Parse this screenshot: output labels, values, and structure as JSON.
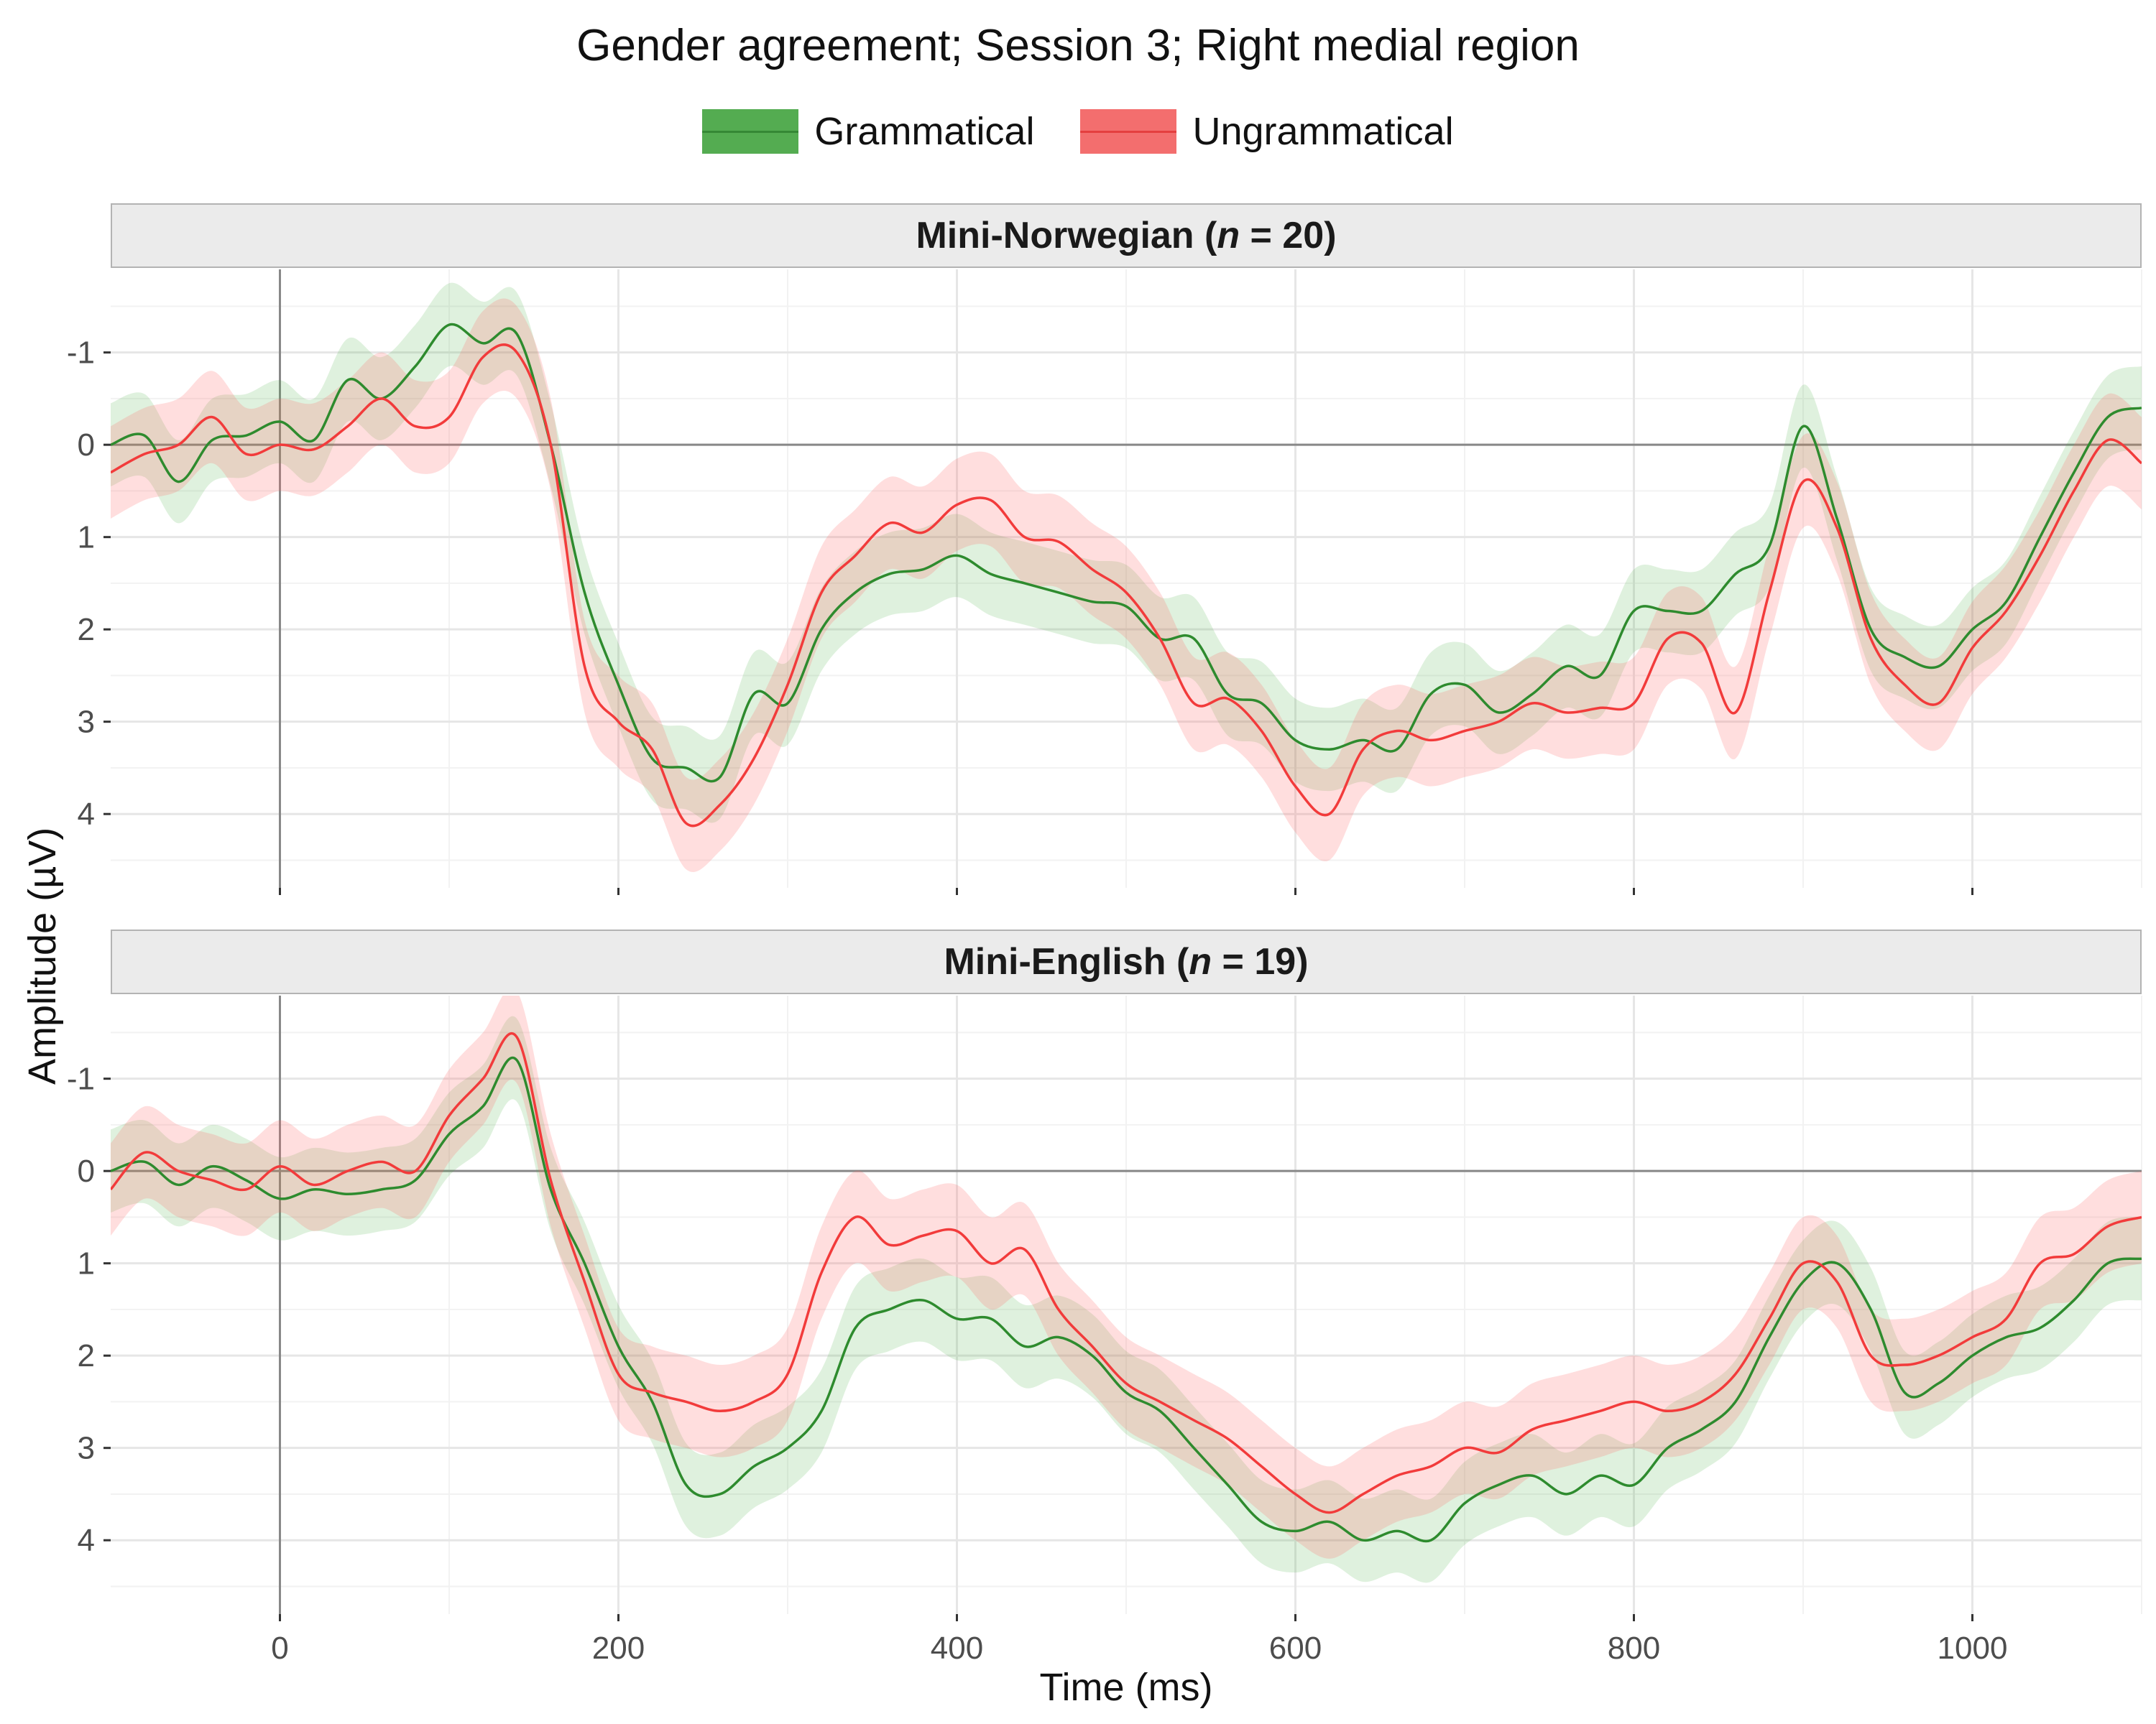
{
  "chart_data": {
    "type": "line",
    "title": "Gender agreement; Session 3; Right medial region",
    "xlabel": "Time (ms)",
    "ylabel": "Amplitude (µV)",
    "y_reversed": true,
    "xlim": [
      -100,
      1100
    ],
    "ylim": [
      -1.9,
      4.8
    ],
    "x_ticks": [
      0,
      200,
      400,
      600,
      800,
      1000
    ],
    "y_ticks": [
      -1,
      0,
      1,
      2,
      3,
      4
    ],
    "x_tick_labels": [
      "0",
      "200",
      "400",
      "600",
      "800",
      "1000"
    ],
    "y_tick_labels": [
      "-1",
      "0",
      "1",
      "2",
      "3",
      "4"
    ],
    "grid": true,
    "legend_position": "top",
    "legend": [
      {
        "name": "Grammatical",
        "color": "#2e8b2e",
        "fill": "#4daf4a"
      },
      {
        "name": "Ungrammatical",
        "color": "#f23b3b",
        "fill": "#ff6b6b"
      }
    ],
    "panels": [
      {
        "label_prefix": "Mini-Norwegian (",
        "label_n": "n",
        "label_suffix": " = 20)",
        "x": [
          -100,
          -80,
          -60,
          -40,
          -20,
          0,
          20,
          40,
          60,
          80,
          100,
          120,
          140,
          160,
          180,
          200,
          220,
          240,
          260,
          280,
          300,
          320,
          340,
          360,
          380,
          400,
          420,
          440,
          460,
          480,
          500,
          520,
          540,
          560,
          580,
          600,
          620,
          640,
          660,
          680,
          700,
          720,
          740,
          760,
          780,
          800,
          820,
          840,
          860,
          880,
          900,
          920,
          940,
          960,
          980,
          1000,
          1020,
          1040,
          1060,
          1080,
          1100
        ],
        "series": [
          {
            "name": "Grammatical",
            "values": [
              0.0,
              -0.1,
              0.4,
              -0.05,
              -0.1,
              -0.25,
              -0.05,
              -0.7,
              -0.5,
              -0.85,
              -1.3,
              -1.1,
              -1.2,
              0.0,
              1.6,
              2.6,
              3.4,
              3.5,
              3.6,
              2.7,
              2.8,
              2.0,
              1.6,
              1.4,
              1.35,
              1.2,
              1.4,
              1.5,
              1.6,
              1.7,
              1.75,
              2.1,
              2.1,
              2.7,
              2.8,
              3.2,
              3.3,
              3.2,
              3.3,
              2.7,
              2.6,
              2.9,
              2.7,
              2.4,
              2.5,
              1.8,
              1.8,
              1.8,
              1.4,
              1.1,
              -0.2,
              0.8,
              2.0,
              2.3,
              2.4,
              2.0,
              1.7,
              1.0,
              0.3,
              -0.3,
              -0.4
            ],
            "band": 0.45
          },
          {
            "name": "Ungrammatical",
            "values": [
              0.3,
              0.1,
              0.0,
              -0.3,
              0.1,
              0.0,
              0.05,
              -0.2,
              -0.5,
              -0.2,
              -0.3,
              -0.95,
              -1.0,
              0.0,
              2.4,
              3.0,
              3.3,
              4.1,
              3.9,
              3.4,
              2.6,
              1.6,
              1.2,
              0.85,
              0.95,
              0.65,
              0.6,
              1.0,
              1.05,
              1.35,
              1.6,
              2.1,
              2.8,
              2.75,
              3.1,
              3.7,
              4.0,
              3.3,
              3.1,
              3.2,
              3.1,
              3.0,
              2.8,
              2.9,
              2.85,
              2.8,
              2.1,
              2.15,
              2.9,
              1.6,
              0.4,
              0.9,
              2.1,
              2.6,
              2.8,
              2.2,
              1.8,
              1.2,
              0.5,
              -0.05,
              0.2
            ],
            "band": 0.5
          }
        ]
      },
      {
        "label_prefix": "Mini-English (",
        "label_n": "n",
        "label_suffix": " = 19)",
        "x": [
          -100,
          -80,
          -60,
          -40,
          -20,
          0,
          20,
          40,
          60,
          80,
          100,
          120,
          140,
          160,
          180,
          200,
          220,
          240,
          260,
          280,
          300,
          320,
          340,
          360,
          380,
          400,
          420,
          440,
          460,
          480,
          500,
          520,
          540,
          560,
          580,
          600,
          620,
          640,
          660,
          680,
          700,
          720,
          740,
          760,
          780,
          800,
          820,
          840,
          860,
          880,
          900,
          920,
          940,
          960,
          980,
          1000,
          1020,
          1040,
          1060,
          1080,
          1100
        ],
        "series": [
          {
            "name": "Grammatical",
            "values": [
              0.0,
              -0.1,
              0.15,
              -0.05,
              0.1,
              0.3,
              0.2,
              0.25,
              0.2,
              0.1,
              -0.4,
              -0.7,
              -1.2,
              0.2,
              1.0,
              1.9,
              2.5,
              3.4,
              3.5,
              3.2,
              3.0,
              2.6,
              1.7,
              1.5,
              1.4,
              1.6,
              1.6,
              1.9,
              1.8,
              2.0,
              2.4,
              2.6,
              3.0,
              3.4,
              3.8,
              3.9,
              3.8,
              4.0,
              3.9,
              4.0,
              3.6,
              3.4,
              3.3,
              3.5,
              3.3,
              3.4,
              3.0,
              2.8,
              2.5,
              1.8,
              1.2,
              1.0,
              1.5,
              2.4,
              2.3,
              2.0,
              1.8,
              1.7,
              1.4,
              1.0,
              0.95
            ],
            "band": 0.45
          },
          {
            "name": "Ungrammatical",
            "values": [
              0.2,
              -0.2,
              0.0,
              0.1,
              0.2,
              -0.05,
              0.15,
              0.0,
              -0.1,
              0.0,
              -0.6,
              -1.0,
              -1.45,
              0.1,
              1.2,
              2.2,
              2.4,
              2.5,
              2.6,
              2.5,
              2.2,
              1.1,
              0.5,
              0.8,
              0.7,
              0.65,
              1.0,
              0.85,
              1.5,
              1.9,
              2.3,
              2.5,
              2.7,
              2.9,
              3.2,
              3.5,
              3.7,
              3.5,
              3.3,
              3.2,
              3.0,
              3.05,
              2.8,
              2.7,
              2.6,
              2.5,
              2.6,
              2.5,
              2.2,
              1.6,
              1.0,
              1.2,
              2.0,
              2.1,
              2.0,
              1.8,
              1.6,
              1.0,
              0.9,
              0.6,
              0.5
            ],
            "band": 0.5
          }
        ]
      }
    ]
  }
}
